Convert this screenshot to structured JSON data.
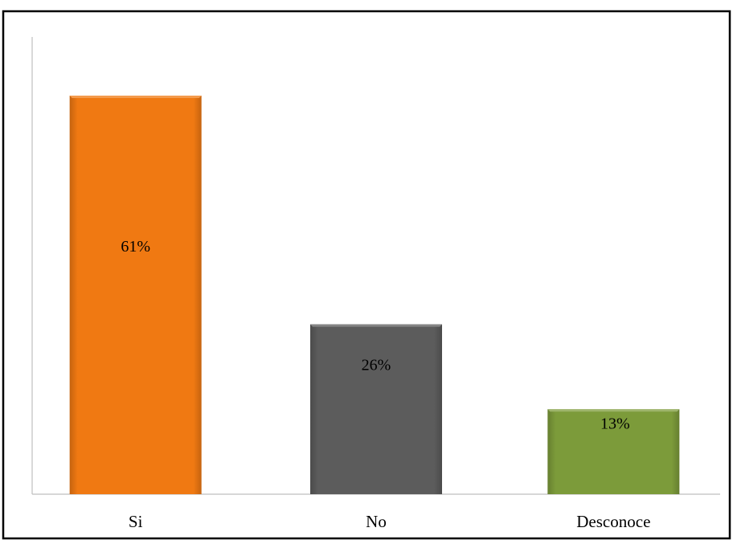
{
  "chart_data": {
    "type": "bar",
    "title": "",
    "xlabel": "",
    "ylabel": "",
    "categories": [
      "Si",
      "No",
      "Desconoce"
    ],
    "values": [
      61,
      26,
      13
    ],
    "data_labels": [
      "61%",
      "26%",
      "13%"
    ],
    "colors": [
      "#F07912",
      "#5C5C5C",
      "#7C9B3A"
    ],
    "ylim": [
      0,
      70
    ],
    "grid": false,
    "legend": "none"
  }
}
